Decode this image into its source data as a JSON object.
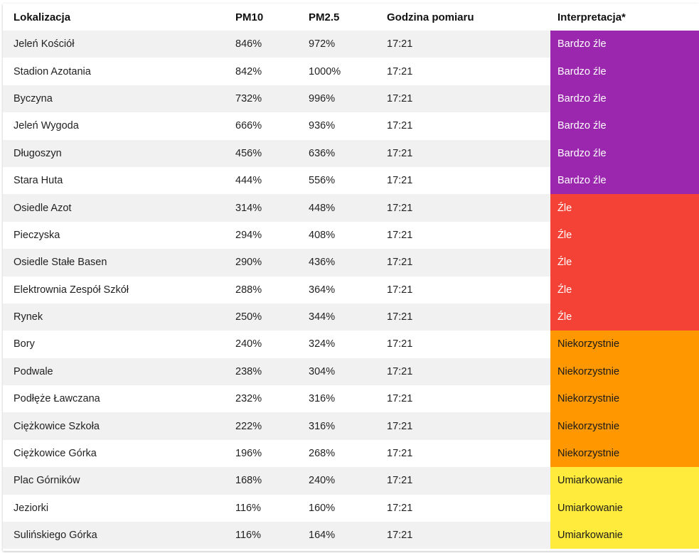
{
  "headers": [
    "Lokalizacja",
    "PM10",
    "PM2.5",
    "Godzina pomiaru",
    "Interpretacja*"
  ],
  "rows": [
    {
      "location": "Jeleń Kościół",
      "pm10": "846%",
      "pm25": "972%",
      "time": "17:21",
      "interpretation": "Bardzo źle",
      "level": "bardzo-zle"
    },
    {
      "location": "Stadion Azotania",
      "pm10": "842%",
      "pm25": "1000%",
      "time": "17:21",
      "interpretation": "Bardzo źle",
      "level": "bardzo-zle"
    },
    {
      "location": "Byczyna",
      "pm10": "732%",
      "pm25": "996%",
      "time": "17:21",
      "interpretation": "Bardzo źle",
      "level": "bardzo-zle"
    },
    {
      "location": "Jeleń Wygoda",
      "pm10": "666%",
      "pm25": "936%",
      "time": "17:21",
      "interpretation": "Bardzo źle",
      "level": "bardzo-zle"
    },
    {
      "location": "Długoszyn",
      "pm10": "456%",
      "pm25": "636%",
      "time": "17:21",
      "interpretation": "Bardzo źle",
      "level": "bardzo-zle"
    },
    {
      "location": "Stara Huta",
      "pm10": "444%",
      "pm25": "556%",
      "time": "17:21",
      "interpretation": "Bardzo źle",
      "level": "bardzo-zle"
    },
    {
      "location": "Osiedle Azot",
      "pm10": "314%",
      "pm25": "448%",
      "time": "17:21",
      "interpretation": "Źle",
      "level": "zle"
    },
    {
      "location": "Pieczyska",
      "pm10": "294%",
      "pm25": "408%",
      "time": "17:21",
      "interpretation": "Źle",
      "level": "zle"
    },
    {
      "location": "Osiedle Stałe Basen",
      "pm10": "290%",
      "pm25": "436%",
      "time": "17:21",
      "interpretation": "Źle",
      "level": "zle"
    },
    {
      "location": "Elektrownia Zespół Szkół",
      "pm10": "288%",
      "pm25": "364%",
      "time": "17:21",
      "interpretation": "Źle",
      "level": "zle"
    },
    {
      "location": "Rynek",
      "pm10": "250%",
      "pm25": "344%",
      "time": "17:21",
      "interpretation": "Źle",
      "level": "zle"
    },
    {
      "location": "Bory",
      "pm10": "240%",
      "pm25": "324%",
      "time": "17:21",
      "interpretation": "Niekorzystnie",
      "level": "niekorzystnie"
    },
    {
      "location": "Podwale",
      "pm10": "238%",
      "pm25": "304%",
      "time": "17:21",
      "interpretation": "Niekorzystnie",
      "level": "niekorzystnie"
    },
    {
      "location": "Podłęże Ławczana",
      "pm10": "232%",
      "pm25": "316%",
      "time": "17:21",
      "interpretation": "Niekorzystnie",
      "level": "niekorzystnie"
    },
    {
      "location": "Ciężkowice Szkoła",
      "pm10": "222%",
      "pm25": "316%",
      "time": "17:21",
      "interpretation": "Niekorzystnie",
      "level": "niekorzystnie"
    },
    {
      "location": "Ciężkowice Górka",
      "pm10": "196%",
      "pm25": "268%",
      "time": "17:21",
      "interpretation": "Niekorzystnie",
      "level": "niekorzystnie"
    },
    {
      "location": "Plac Górników",
      "pm10": "168%",
      "pm25": "240%",
      "time": "17:21",
      "interpretation": "Umiarkowanie",
      "level": "umiarkowanie"
    },
    {
      "location": "Jeziorki",
      "pm10": "116%",
      "pm25": "160%",
      "time": "17:21",
      "interpretation": "Umiarkowanie",
      "level": "umiarkowanie"
    },
    {
      "location": "Sulińskiego Górka",
      "pm10": "116%",
      "pm25": "164%",
      "time": "17:21",
      "interpretation": "Umiarkowanie",
      "level": "umiarkowanie"
    }
  ],
  "level_colors": {
    "bardzo-zle": {
      "bg": "#9b27af",
      "fg": "#ffffff"
    },
    "zle": {
      "bg": "#f44336",
      "fg": "#ffffff"
    },
    "niekorzystnie": {
      "bg": "#ff9800",
      "fg": "#1a1a1a"
    },
    "umiarkowanie": {
      "bg": "#ffeb3b",
      "fg": "#1a1a1a"
    }
  }
}
